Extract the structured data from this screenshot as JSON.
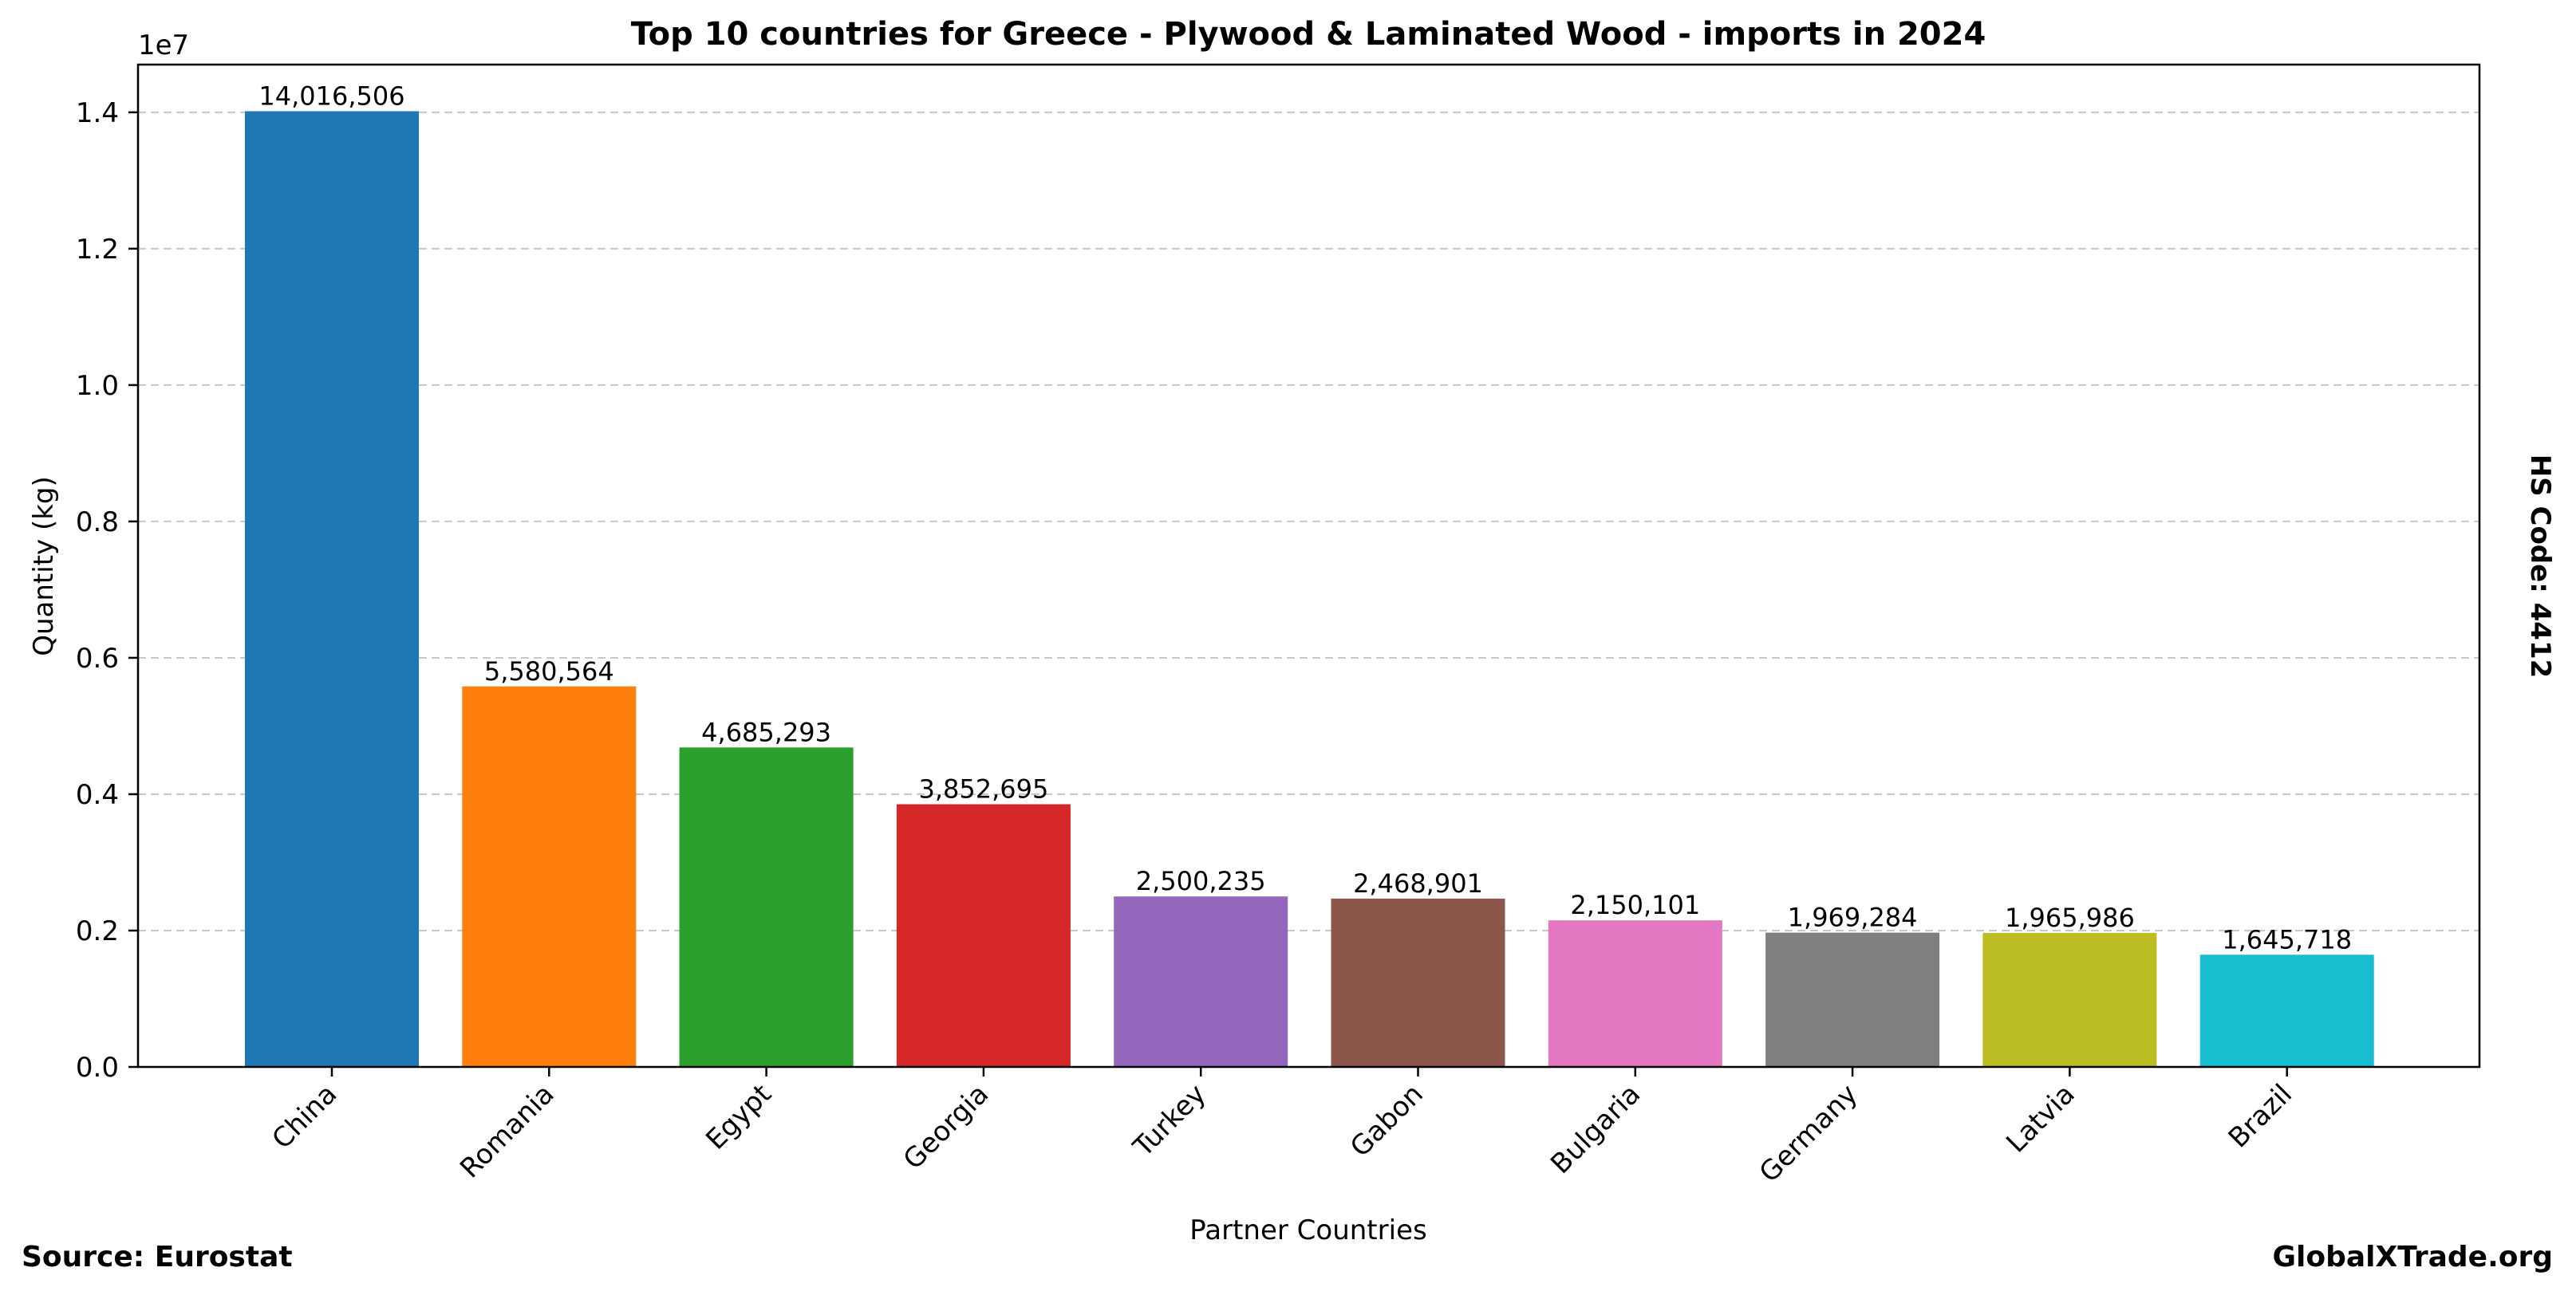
{
  "footer": {
    "source": "Source: Eurostat",
    "site": "GlobalXTrade.org"
  },
  "side_label": "HS Code: 4412",
  "chart_data": {
    "type": "bar",
    "title": "Top 10 countries for Greece - Plywood & Laminated Wood - imports in 2024",
    "xlabel": "Partner Countries",
    "ylabel": "Quantity (kg)",
    "y_offset_label": "1e7",
    "ylim": [
      0,
      14700000
    ],
    "yticks": [
      0,
      2000000,
      4000000,
      6000000,
      8000000,
      10000000,
      12000000,
      14000000
    ],
    "ytick_labels": [
      "0.0",
      "0.2",
      "0.4",
      "0.6",
      "0.8",
      "1.0",
      "1.2",
      "1.4"
    ],
    "grid": "y-dashed",
    "categories": [
      "China",
      "Romania",
      "Egypt",
      "Georgia",
      "Turkey",
      "Gabon",
      "Bulgaria",
      "Germany",
      "Latvia",
      "Brazil"
    ],
    "values": [
      14016506,
      5580564,
      4685293,
      3852695,
      2500235,
      2468901,
      2150101,
      1969284,
      1965986,
      1645718
    ],
    "value_labels": [
      "14,016,506",
      "5,580,564",
      "4,685,293",
      "3,852,695",
      "2,500,235",
      "2,468,901",
      "2,150,101",
      "1,969,284",
      "1,965,986",
      "1,645,718"
    ],
    "colors": [
      "#1f77b4",
      "#ff7f0e",
      "#2ca02c",
      "#d62728",
      "#9467bd",
      "#8c564b",
      "#e377c2",
      "#7f7f7f",
      "#bcbd22",
      "#17becf"
    ]
  }
}
